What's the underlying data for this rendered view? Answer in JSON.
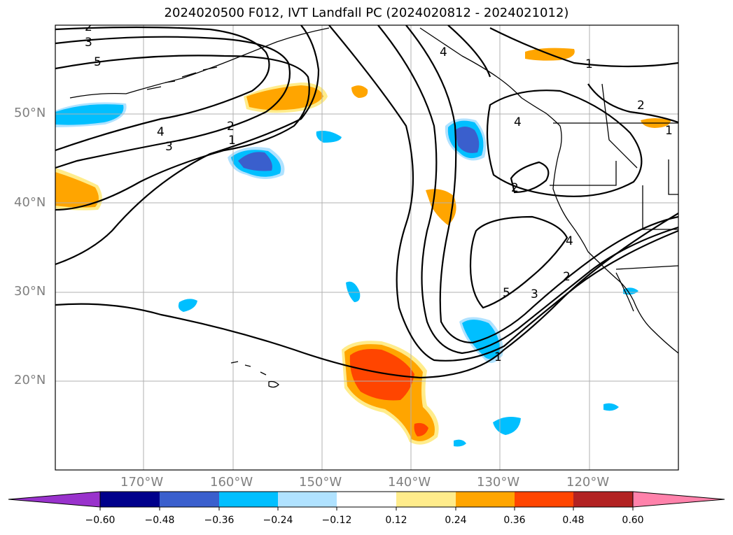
{
  "title": "2024020500 F012, IVT Landfall PC (2024020812 - 2024021012)",
  "lat_labels": [
    "50°N",
    "40°N",
    "30°N",
    "20°N"
  ],
  "lon_labels": [
    "170°W",
    "160°W",
    "150°W",
    "140°W",
    "130°W",
    "120°W"
  ],
  "contour_labels": [
    "2",
    "3",
    "5",
    "4",
    "3",
    "2",
    "1",
    "4",
    "1",
    "2",
    "1",
    "4",
    "2",
    "4",
    "5",
    "3",
    "2",
    "1"
  ],
  "colorbar": {
    "ticks": [
      "−0.60",
      "−0.48",
      "−0.36",
      "−0.24",
      "−0.12",
      "0.12",
      "0.24",
      "0.36",
      "0.48",
      "0.60"
    ],
    "colors": [
      "#9932cc",
      "#00008b",
      "#3a5fcd",
      "#00bfff",
      "#b0e2ff",
      "#ffffff",
      "#ffec8b",
      "#ffa500",
      "#ff4500",
      "#b22222",
      "#ff82ab"
    ]
  }
}
